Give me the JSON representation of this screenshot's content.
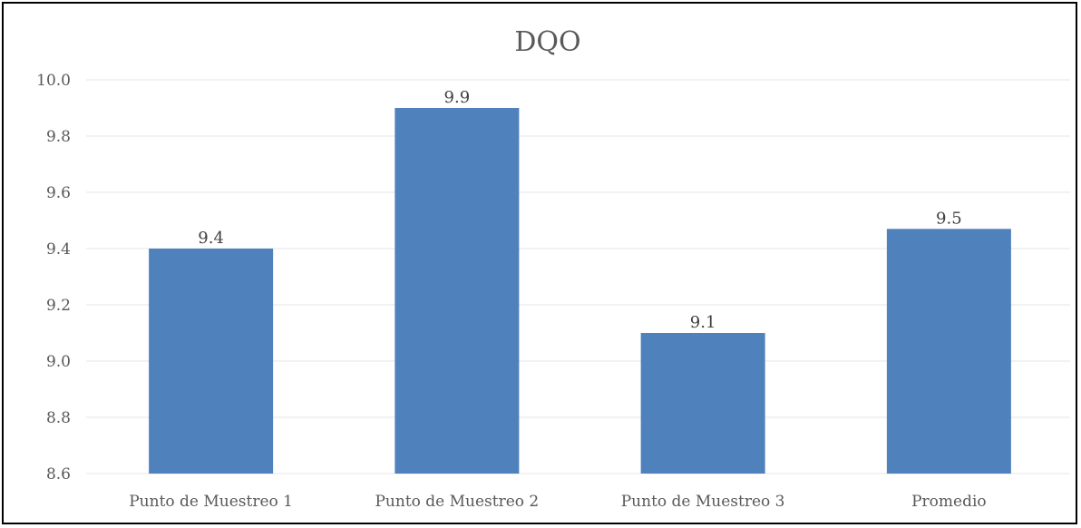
{
  "chart_data": {
    "type": "bar",
    "title": "DQO",
    "xlabel": "",
    "ylabel": "",
    "categories": [
      "Punto de Muestreo 1",
      "Punto de Muestreo 2",
      "Punto de Muestreo 3",
      "Promedio"
    ],
    "values": [
      9.4,
      9.9,
      9.1,
      9.47
    ],
    "data_labels": [
      "9.4",
      "9.9",
      "9.1",
      "9.5"
    ],
    "ylim": [
      8.6,
      10.0
    ],
    "yticks": [
      "10.0",
      "9.8",
      "9.6",
      "9.4",
      "9.2",
      "9.0",
      "8.8",
      "8.6"
    ],
    "ytick_values": [
      10.0,
      9.8,
      9.6,
      9.4,
      9.2,
      9.0,
      8.8,
      8.6
    ],
    "grid": true,
    "legend": "none",
    "colors": {
      "bar": "#4f81bd",
      "grid": "#e6e6e6",
      "text": "#595959"
    }
  }
}
